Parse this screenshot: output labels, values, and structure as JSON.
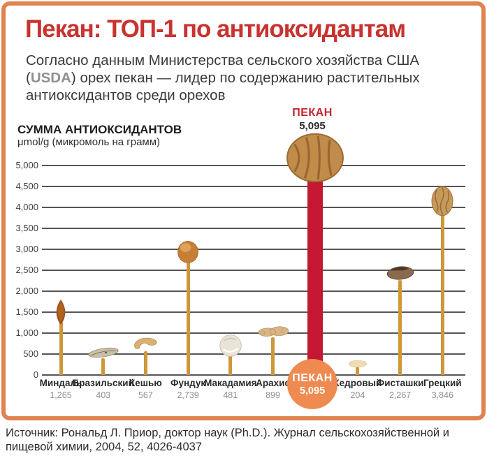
{
  "header": {
    "title": "Пекан: ТОП-1 по антиоксидантам",
    "subtitle_pre": "Согласно данным Министерства сельского хозяйства США (",
    "subtitle_usda": "USDA",
    "subtitle_post": ") орех пекан — лидер по содержанию растительных антиоксидантов среди орехов"
  },
  "callout": {
    "label": "ПЕКАН",
    "value": "5,095"
  },
  "badge": {
    "name": "ПЕКАН",
    "value": "5,095"
  },
  "source": "Источник: Рональд Л. Приор, доктор наук (Ph.D.). Журнал сельскохозяйственной и пищевой химии, 2004, 52, 4026-4037",
  "chart_data": {
    "type": "bar",
    "title": "СУММА АНТИОКСИДАНТОВ",
    "ylabel": "μmol/g (микромоль на грамм)",
    "categories": [
      "Миндаль",
      "Бразильский",
      "Кешью",
      "Фундук",
      "Макадамия",
      "Арахис",
      "ПЕКАН",
      "Кедровый",
      "Фисташки",
      "Грецкий"
    ],
    "values": [
      1265,
      403,
      567,
      2739,
      481,
      899,
      5095,
      204,
      2267,
      3846
    ],
    "value_labels": [
      "1,265",
      "403",
      "567",
      "2,739",
      "481",
      "899",
      "5,095",
      "204",
      "2,267",
      "3,846"
    ],
    "icons": [
      "almond-icon",
      "brazil-nut-icon",
      "cashew-icon",
      "hazelnut-icon",
      "macadamia-icon",
      "peanut-icon",
      "pecan-icon",
      "pine-nut-icon",
      "pistachio-icon",
      "walnut-icon"
    ],
    "highlight_index": 6,
    "ylim": [
      0,
      5000
    ],
    "yticks": [
      5000,
      4500,
      4000,
      3500,
      3000,
      2500,
      2000,
      1500,
      1000,
      500,
      0
    ],
    "ytick_labels": [
      "5,000",
      "4,500",
      "4,000",
      "3,500",
      "3,000",
      "2,500",
      "2,000",
      "1,500",
      "1,000",
      "500",
      "0"
    ],
    "grid": true,
    "legend": "none",
    "colors": {
      "bar": "#CE9838",
      "highlight_bar": "#C31732",
      "highlight_badge": "#EF8A50",
      "gridline": "#555555",
      "title_red": "#C8332F",
      "frame_orange": "#E0834E"
    }
  }
}
